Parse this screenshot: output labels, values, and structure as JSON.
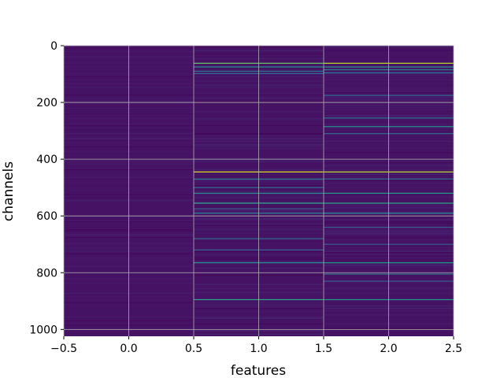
{
  "chart_data": {
    "type": "heatmap",
    "title": "",
    "xlabel": "features",
    "ylabel": "channels",
    "xlim": [
      -0.5,
      2.5
    ],
    "ylim": [
      1024,
      0
    ],
    "y_inverted": true,
    "grid": true,
    "colormap": "viridis",
    "columns": [
      0,
      1,
      2
    ],
    "rows": 1024,
    "x_ticks": [
      -0.5,
      0.0,
      0.5,
      1.0,
      1.5,
      2.0,
      2.5
    ],
    "x_tick_labels": [
      "−0.5",
      "0.0",
      "0.5",
      "1.0",
      "1.5",
      "2.0",
      "2.5"
    ],
    "y_ticks": [
      0,
      200,
      400,
      600,
      800,
      1000
    ],
    "y_tick_labels": [
      "0",
      "200",
      "400",
      "600",
      "800",
      "1000"
    ],
    "base_value": 0.05,
    "highlights": [
      {
        "column": 1,
        "channel": 62,
        "value": 0.75
      },
      {
        "column": 1,
        "channel": 75,
        "value": 0.5
      },
      {
        "column": 1,
        "channel": 90,
        "value": 0.4
      },
      {
        "column": 1,
        "channel": 98,
        "value": 0.35
      },
      {
        "column": 1,
        "channel": 445,
        "value": 0.95
      },
      {
        "column": 1,
        "channel": 470,
        "value": 0.4
      },
      {
        "column": 1,
        "channel": 500,
        "value": 0.35
      },
      {
        "column": 1,
        "channel": 520,
        "value": 0.5
      },
      {
        "column": 1,
        "channel": 555,
        "value": 0.6
      },
      {
        "column": 1,
        "channel": 575,
        "value": 0.3
      },
      {
        "column": 1,
        "channel": 590,
        "value": 0.45
      },
      {
        "column": 1,
        "channel": 680,
        "value": 0.35
      },
      {
        "column": 1,
        "channel": 720,
        "value": 0.3
      },
      {
        "column": 1,
        "channel": 765,
        "value": 0.5
      },
      {
        "column": 1,
        "channel": 895,
        "value": 0.6
      },
      {
        "column": 2,
        "channel": 62,
        "value": 0.9
      },
      {
        "column": 2,
        "channel": 75,
        "value": 0.55
      },
      {
        "column": 2,
        "channel": 85,
        "value": 0.45
      },
      {
        "column": 2,
        "channel": 96,
        "value": 0.4
      },
      {
        "column": 2,
        "channel": 175,
        "value": 0.35
      },
      {
        "column": 2,
        "channel": 255,
        "value": 0.4
      },
      {
        "column": 2,
        "channel": 285,
        "value": 0.5
      },
      {
        "column": 2,
        "channel": 310,
        "value": 0.35
      },
      {
        "column": 2,
        "channel": 445,
        "value": 0.9
      },
      {
        "column": 2,
        "channel": 470,
        "value": 0.35
      },
      {
        "column": 2,
        "channel": 520,
        "value": 0.55
      },
      {
        "column": 2,
        "channel": 555,
        "value": 0.6
      },
      {
        "column": 2,
        "channel": 590,
        "value": 0.5
      },
      {
        "column": 2,
        "channel": 640,
        "value": 0.3
      },
      {
        "column": 2,
        "channel": 700,
        "value": 0.3
      },
      {
        "column": 2,
        "channel": 765,
        "value": 0.55
      },
      {
        "column": 2,
        "channel": 805,
        "value": 0.35
      },
      {
        "column": 2,
        "channel": 830,
        "value": 0.3
      },
      {
        "column": 2,
        "channel": 895,
        "value": 0.55
      }
    ]
  }
}
